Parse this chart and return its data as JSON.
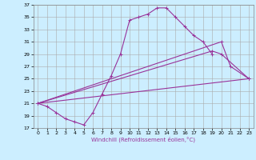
{
  "xlabel": "Windchill (Refroidissement éolien,°C)",
  "bg_color": "#cceeff",
  "grid_color": "#aaaaaa",
  "line_color": "#993399",
  "xlim": [
    -0.5,
    23.5
  ],
  "ylim": [
    17,
    37
  ],
  "xticks": [
    0,
    1,
    2,
    3,
    4,
    5,
    6,
    7,
    8,
    9,
    10,
    11,
    12,
    13,
    14,
    15,
    16,
    17,
    18,
    19,
    20,
    21,
    22,
    23
  ],
  "yticks": [
    17,
    19,
    21,
    23,
    25,
    27,
    29,
    31,
    33,
    35,
    37
  ],
  "curve1_x": [
    0,
    1,
    2,
    3,
    4,
    5,
    6,
    7,
    8,
    9,
    10,
    11,
    12,
    13,
    14,
    15,
    16,
    17,
    18,
    19
  ],
  "curve1_y": [
    21.0,
    20.5,
    19.5,
    18.5,
    18.0,
    17.5,
    19.5,
    22.5,
    25.5,
    29.0,
    34.5,
    35.0,
    35.5,
    36.5,
    36.5,
    35.0,
    33.5,
    32.0,
    31.0,
    29.0
  ],
  "line2_x": [
    0,
    23
  ],
  "line2_y": [
    21.0,
    25.0
  ],
  "line3_x": [
    0,
    19,
    20,
    23
  ],
  "line3_y": [
    21.0,
    29.5,
    29.0,
    25.0
  ],
  "line4_x": [
    0,
    20,
    21,
    23
  ],
  "line4_y": [
    21.0,
    31.0,
    27.0,
    25.0
  ]
}
